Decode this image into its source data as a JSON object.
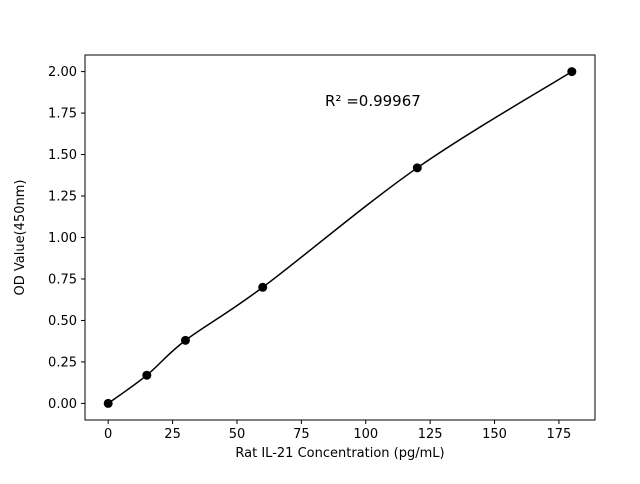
{
  "figure": {
    "background": "#ffffff"
  },
  "chart_data": {
    "type": "scatter",
    "title": "",
    "xlabel": "Rat IL-21 Concentration (pg/mL)",
    "ylabel": "OD Value(450nm)",
    "x": [
      0,
      15,
      30,
      60,
      120,
      180
    ],
    "y": [
      0.0,
      0.17,
      0.38,
      0.7,
      1.42,
      2.0
    ],
    "fit_line": true,
    "annotation": "R² =0.99967",
    "xlim": [
      -9,
      189
    ],
    "ylim": [
      -0.1,
      2.1
    ],
    "xticks": [
      0,
      25,
      50,
      75,
      100,
      125,
      150,
      175
    ],
    "yticks": [
      0.0,
      0.25,
      0.5,
      0.75,
      1.0,
      1.25,
      1.5,
      1.75,
      2.0
    ],
    "grid": false,
    "legend": null,
    "marker_color": "#000000",
    "line_color": "#000000"
  }
}
